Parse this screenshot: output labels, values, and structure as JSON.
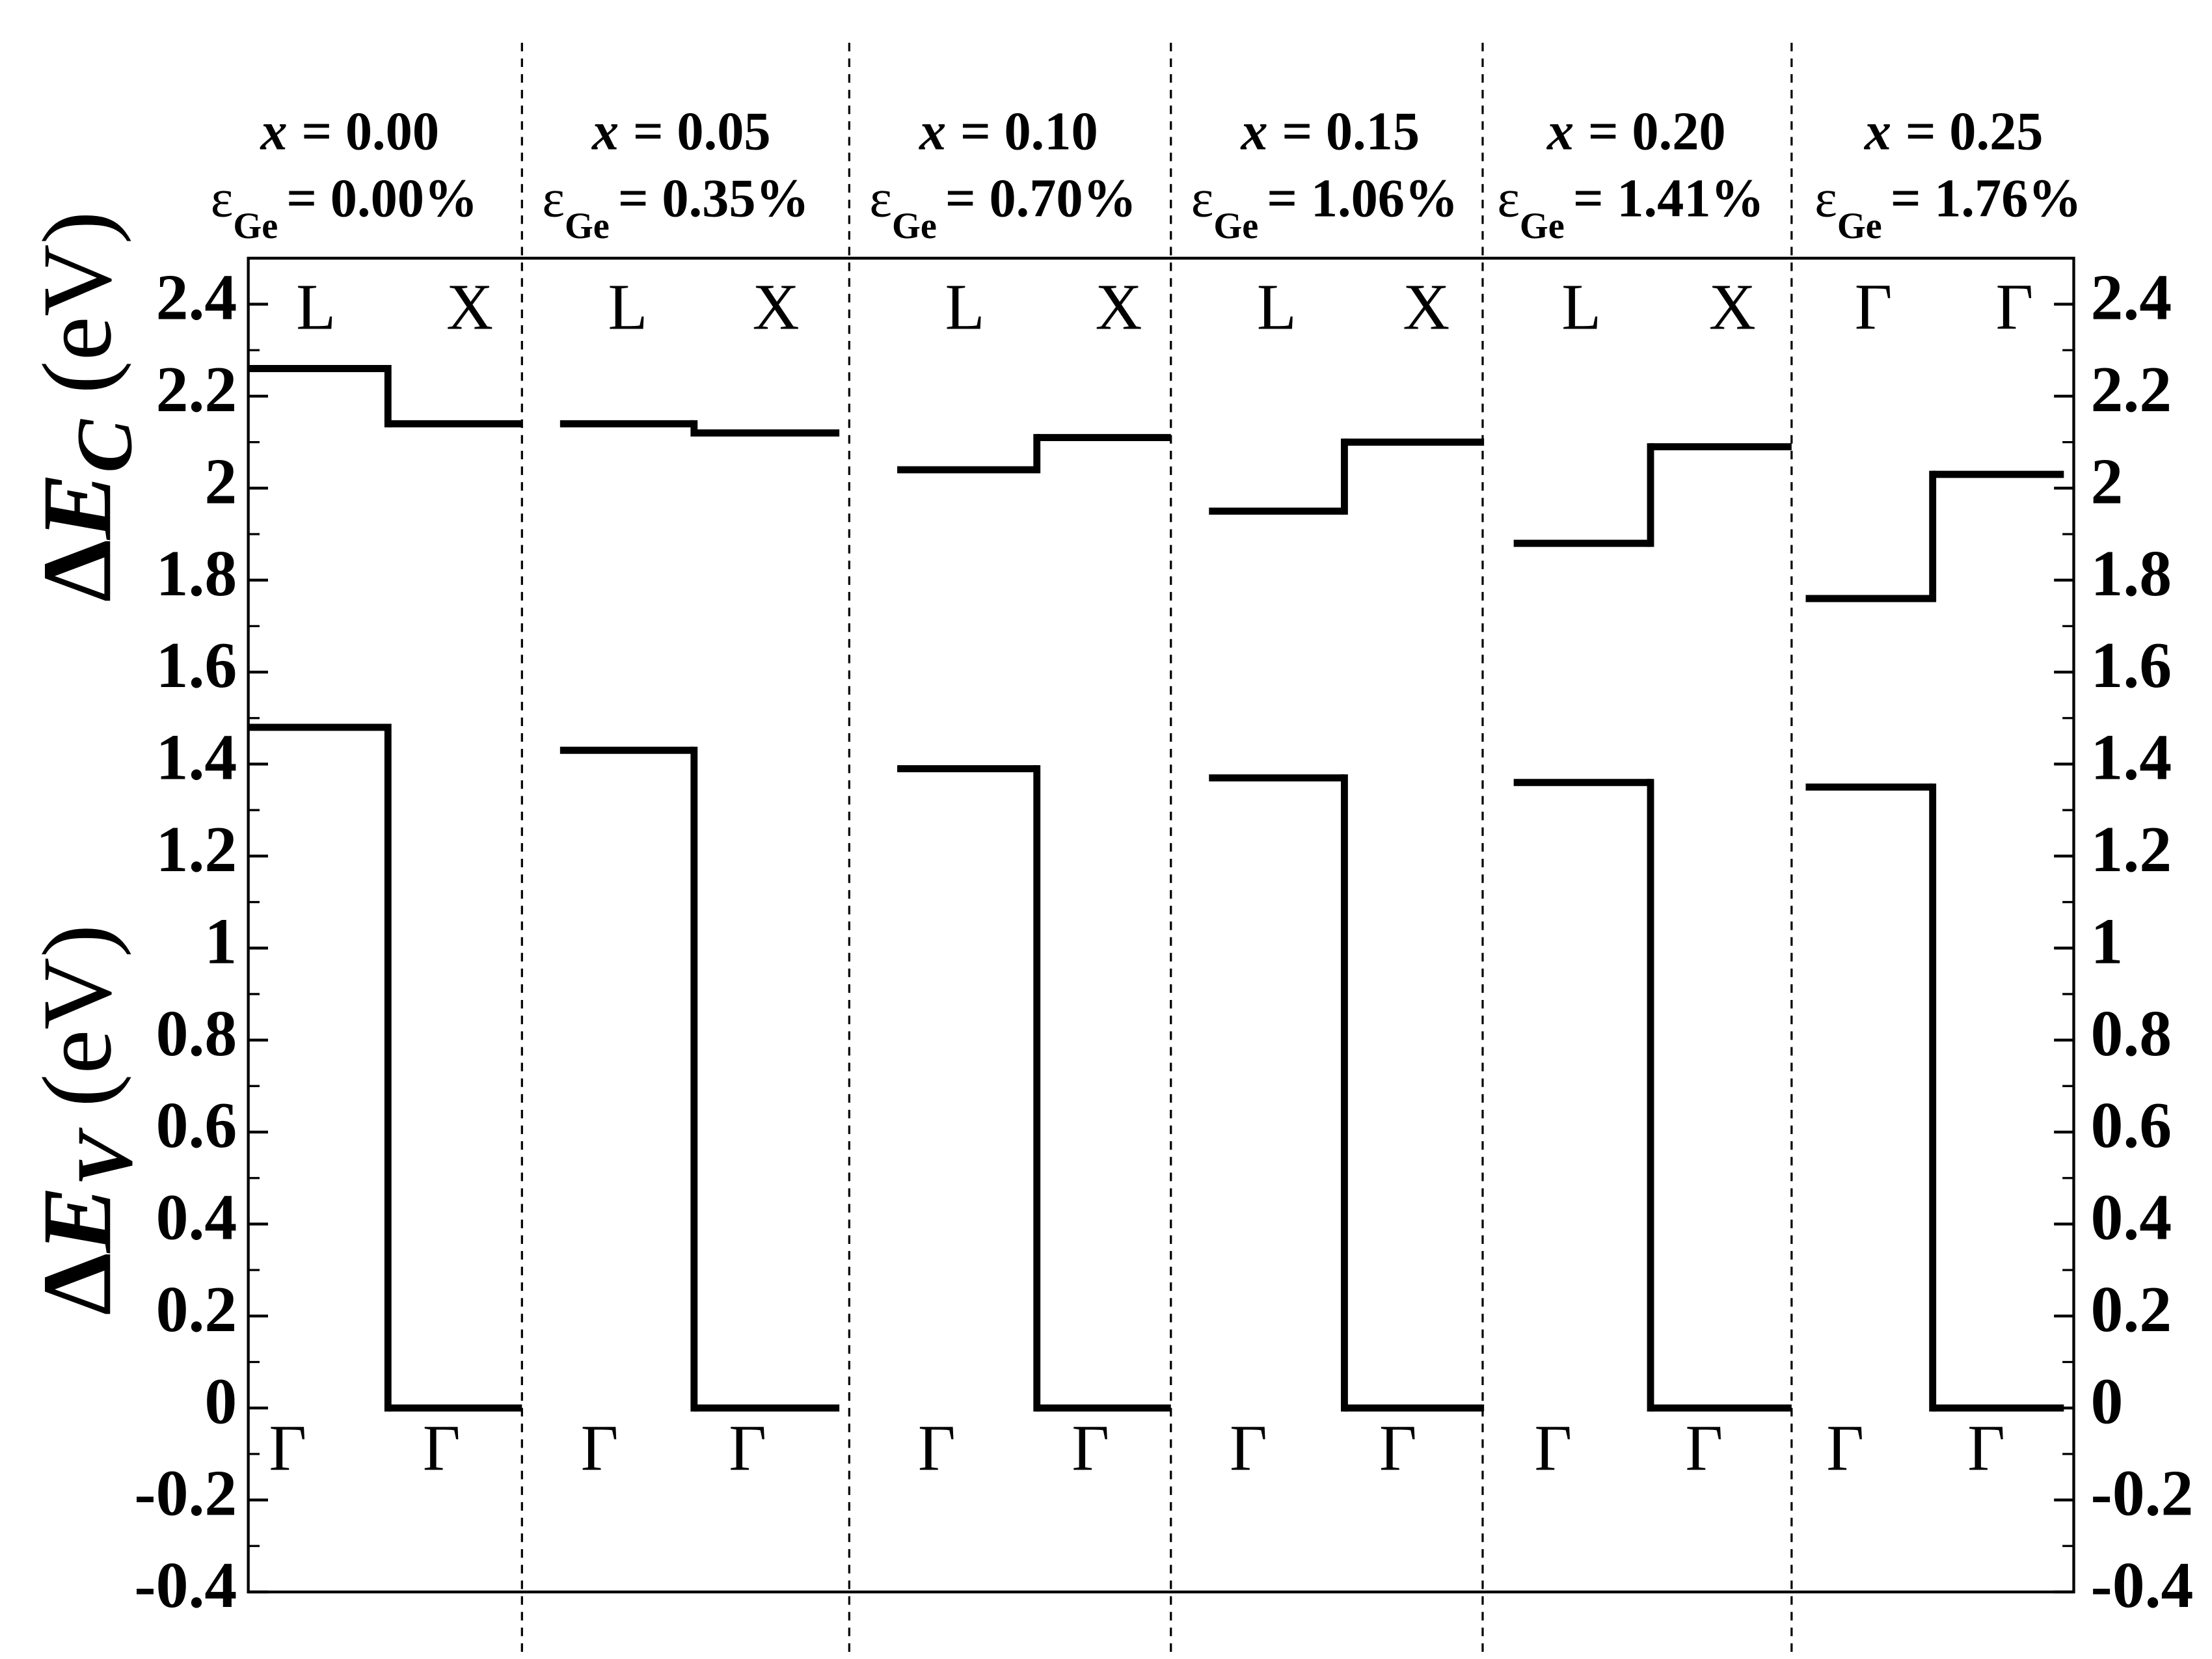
{
  "chart_data": {
    "type": "band-offset-steps",
    "ylim": [
      -0.4,
      2.5
    ],
    "yticks": [
      -0.4,
      -0.2,
      0,
      0.2,
      0.4,
      0.6,
      0.8,
      1,
      1.2,
      1.4,
      1.6,
      1.8,
      2,
      2.2,
      2.4
    ],
    "ylabel_top": [
      "Δ",
      "E",
      "C",
      "(eV)"
    ],
    "ylabel_bottom": [
      "Δ",
      "E",
      "V",
      "(eV)"
    ],
    "color": "#000000",
    "panels": [
      {
        "label": [
          "x",
          "= 0.00"
        ],
        "strain": [
          "ε",
          "Ge",
          "= 0.00%"
        ],
        "conduction": {
          "labels": [
            "L",
            "X"
          ],
          "values": [
            2.26,
            2.14
          ]
        },
        "valence": {
          "labels": [
            "Γ",
            "Γ"
          ],
          "values": [
            1.48,
            0
          ]
        }
      },
      {
        "label": [
          "x",
          "= 0.05"
        ],
        "strain": [
          "ε",
          "Ge",
          "= 0.35%"
        ],
        "conduction": {
          "labels": [
            "L",
            "X"
          ],
          "values": [
            2.14,
            2.12
          ]
        },
        "valence": {
          "labels": [
            "Γ",
            "Γ"
          ],
          "values": [
            1.43,
            0
          ]
        }
      },
      {
        "label": [
          "x",
          "= 0.10"
        ],
        "strain": [
          "ε",
          "Ge",
          "= 0.70%"
        ],
        "conduction": {
          "labels": [
            "L",
            "X"
          ],
          "values": [
            2.04,
            2.11
          ]
        },
        "valence": {
          "labels": [
            "Γ",
            "Γ"
          ],
          "values": [
            1.39,
            0
          ]
        }
      },
      {
        "label": [
          "x",
          "= 0.15"
        ],
        "strain": [
          "ε",
          "Ge",
          "= 1.06%"
        ],
        "conduction": {
          "labels": [
            "L",
            "X"
          ],
          "values": [
            1.95,
            2.1
          ]
        },
        "valence": {
          "labels": [
            "Γ",
            "Γ"
          ],
          "values": [
            1.37,
            0
          ]
        }
      },
      {
        "label": [
          "x",
          "= 0.20"
        ],
        "strain": [
          "ε",
          "Ge",
          "= 1.41%"
        ],
        "conduction": {
          "labels": [
            "L",
            "X"
          ],
          "values": [
            1.88,
            2.09
          ]
        },
        "valence": {
          "labels": [
            "Γ",
            "Γ"
          ],
          "values": [
            1.36,
            0
          ]
        }
      },
      {
        "label": [
          "x",
          "= 0.25"
        ],
        "strain": [
          "ε",
          "Ge",
          "= 1.76%"
        ],
        "conduction": {
          "labels": [
            "Γ",
            "Γ"
          ],
          "values": [
            1.76,
            2.03
          ]
        },
        "valence": {
          "labels": [
            "Γ",
            "Γ"
          ],
          "values": [
            1.35,
            0
          ]
        }
      }
    ]
  }
}
